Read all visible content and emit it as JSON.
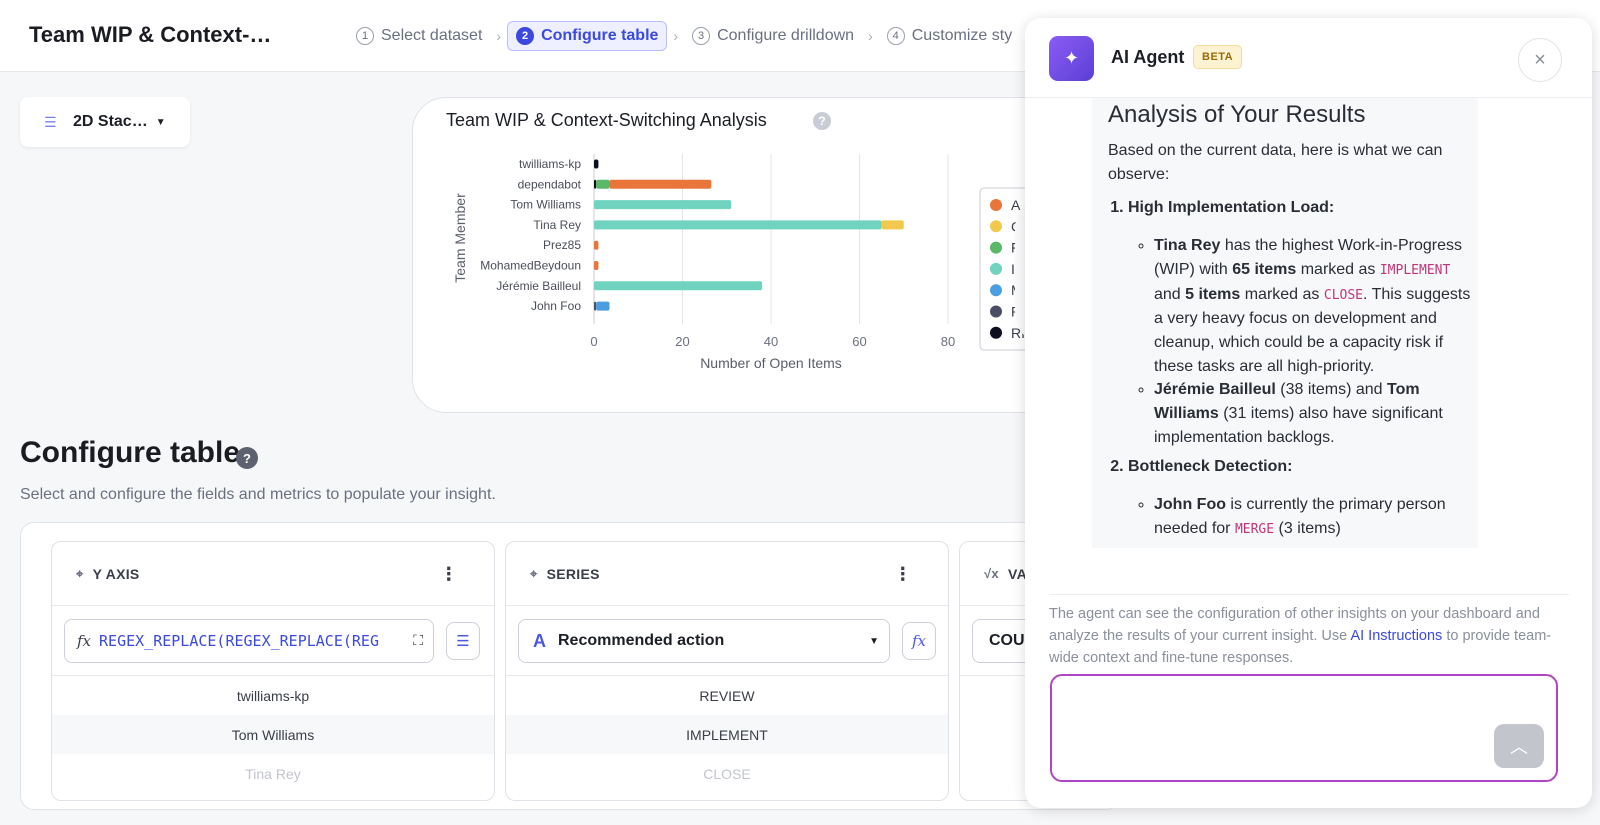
{
  "topbar": {
    "title": "Team WIP & Context-…",
    "steps": [
      {
        "num": "1",
        "label": "Select dataset"
      },
      {
        "num": "2",
        "label": "Configure table"
      },
      {
        "num": "3",
        "label": "Configure drilldown"
      },
      {
        "num": "4",
        "label": "Customize sty"
      }
    ]
  },
  "chart_type": {
    "label": "2D Stac…",
    "icon": "bar-lines-icon"
  },
  "chart_card": {
    "title": "Team WIP & Context-Switching Analysis",
    "help": "?"
  },
  "chart_data": {
    "type": "bar",
    "orientation": "horizontal",
    "stacked": true,
    "title": "Team WIP & Context-Switching Analysis",
    "xlabel": "Number of Open Items",
    "ylabel": "Team Member",
    "xlim": [
      0,
      80
    ],
    "xticks": [
      0,
      20,
      40,
      60,
      80
    ],
    "grid": true,
    "legend_position": "right",
    "categories": [
      "twilliams-kp",
      "dependabot",
      "Tom Williams",
      "Tina Rey",
      "Prez85",
      "MohamedBeydoun",
      "Jérémie Bailleul",
      "John Foo"
    ],
    "series": [
      {
        "name": "A",
        "color": "#e8763a",
        "values": [
          0,
          23,
          0,
          0,
          1,
          1,
          0,
          0
        ]
      },
      {
        "name": "C",
        "color": "#f2c94c",
        "values": [
          0,
          0,
          0,
          5,
          0,
          0,
          0,
          0
        ]
      },
      {
        "name": "FI",
        "color": "#59b968",
        "values": [
          0,
          3,
          0,
          0,
          0,
          0,
          0,
          0
        ]
      },
      {
        "name": "IM",
        "color": "#6fd3bf",
        "values": [
          0,
          0,
          31,
          65,
          0,
          0,
          38,
          0
        ]
      },
      {
        "name": "M",
        "color": "#4b9ee0",
        "values": [
          0,
          0,
          0,
          0,
          0,
          0,
          0,
          3
        ]
      },
      {
        "name": "RI",
        "color": "#4a4f66",
        "values": [
          0,
          0,
          0,
          0,
          0,
          0,
          0,
          0.5
        ]
      },
      {
        "name": "RI",
        "color": "#0d0f1f",
        "values": [
          1,
          0.5,
          0,
          0,
          0,
          0,
          0,
          0
        ]
      }
    ]
  },
  "configure": {
    "title": "Configure table",
    "help": "?",
    "subtitle": "Select and configure the fields and metrics to populate your insight.",
    "y_axis": {
      "header": "Y AXIS",
      "fx": "fx",
      "formula": "REGEX_REPLACE(REGEX_REPLACE(REG",
      "rows": [
        "twilliams-kp",
        "Tom Williams",
        "Tina Rey"
      ]
    },
    "series": {
      "header": "SERIES",
      "value": "Recommended action",
      "fx": "fx",
      "rows": [
        "REVIEW",
        "IMPLEMENT",
        "CLOSE"
      ]
    },
    "values": {
      "header": "VA",
      "value": "COU"
    }
  },
  "agent": {
    "name": "AI Agent",
    "badge": "BETA",
    "close": "×",
    "heading": "Analysis of Your Results",
    "intro": "Based on the current data, here is what we can observe:",
    "point1_title": "High Implementation Load:",
    "p1a_name": "Tina Rey",
    "p1a_t1": " has the highest Work-in-Progress (WIP) with ",
    "p1a_b1": "65 items",
    "p1a_t2": " marked as ",
    "p1a_c1": "IMPLEMENT",
    "p1a_t3": " and ",
    "p1a_b2": "5 items",
    "p1a_t4": " marked as ",
    "p1a_c2": "CLOSE",
    "p1a_t5": ". This suggests a very heavy focus on development and cleanup, which could be a capacity risk if these tasks are all high-priority.",
    "p1b_n1": "Jérémie Bailleul",
    "p1b_t1": " (38 items) and ",
    "p1b_n2": "Tom Williams",
    "p1b_t2": " (31 items) also have significant implementation backlogs.",
    "point2_title": "Bottleneck Detection:",
    "p2a_name": "John Foo",
    "p2a_t1": " is currently the primary person needed for ",
    "p2a_c1": "MERGE",
    "p2a_t2": " (3 items)",
    "note_t1": "The agent can see the configuration of other insights on your dashboard and analyze the results of your current insight. Use ",
    "note_link": "AI Instructions",
    "note_t2": " to provide team-wide context and fine-tune responses.",
    "input_placeholder": ""
  }
}
